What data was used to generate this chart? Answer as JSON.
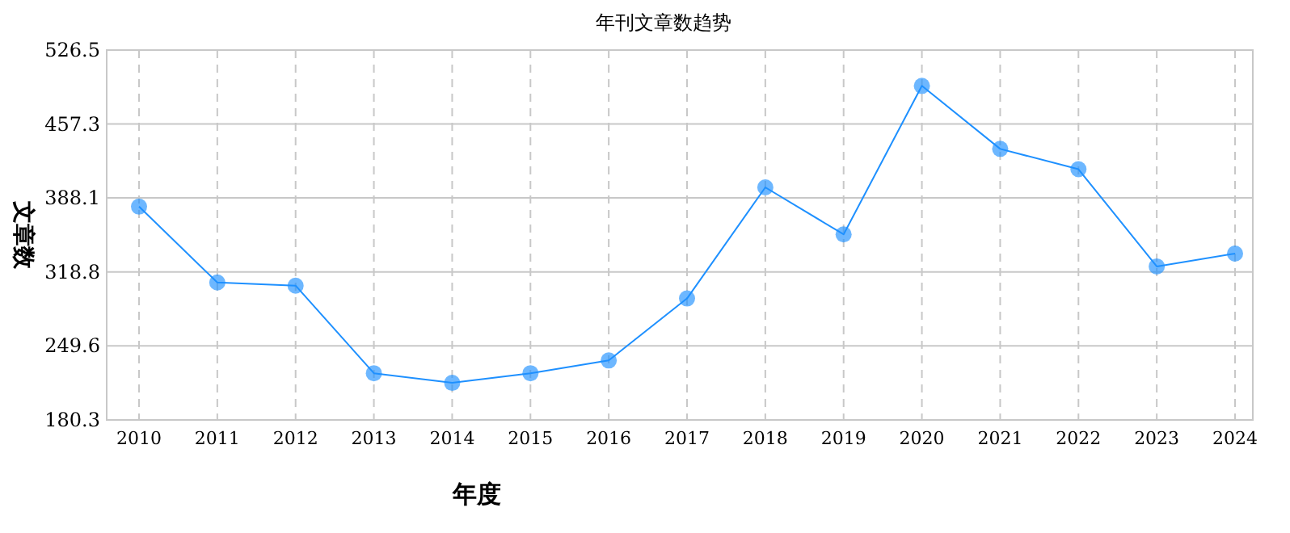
{
  "chart_data": {
    "type": "line",
    "title": "年刊文章数趋势",
    "xlabel": "年度",
    "ylabel": "文章数",
    "categories": [
      "2010",
      "2011",
      "2012",
      "2013",
      "2014",
      "2015",
      "2016",
      "2017",
      "2018",
      "2019",
      "2020",
      "2021",
      "2022",
      "2023",
      "2024"
    ],
    "values": [
      380,
      309,
      306,
      224,
      215,
      224,
      236,
      294,
      398,
      354,
      493,
      434,
      415,
      324,
      336
    ],
    "color": "#1e90ff",
    "ylim": [
      180.3,
      526.5
    ],
    "yticks": [
      180.3,
      249.6,
      318.8,
      388.1,
      457.3,
      526.5
    ],
    "grid": true,
    "marker": "circle"
  }
}
